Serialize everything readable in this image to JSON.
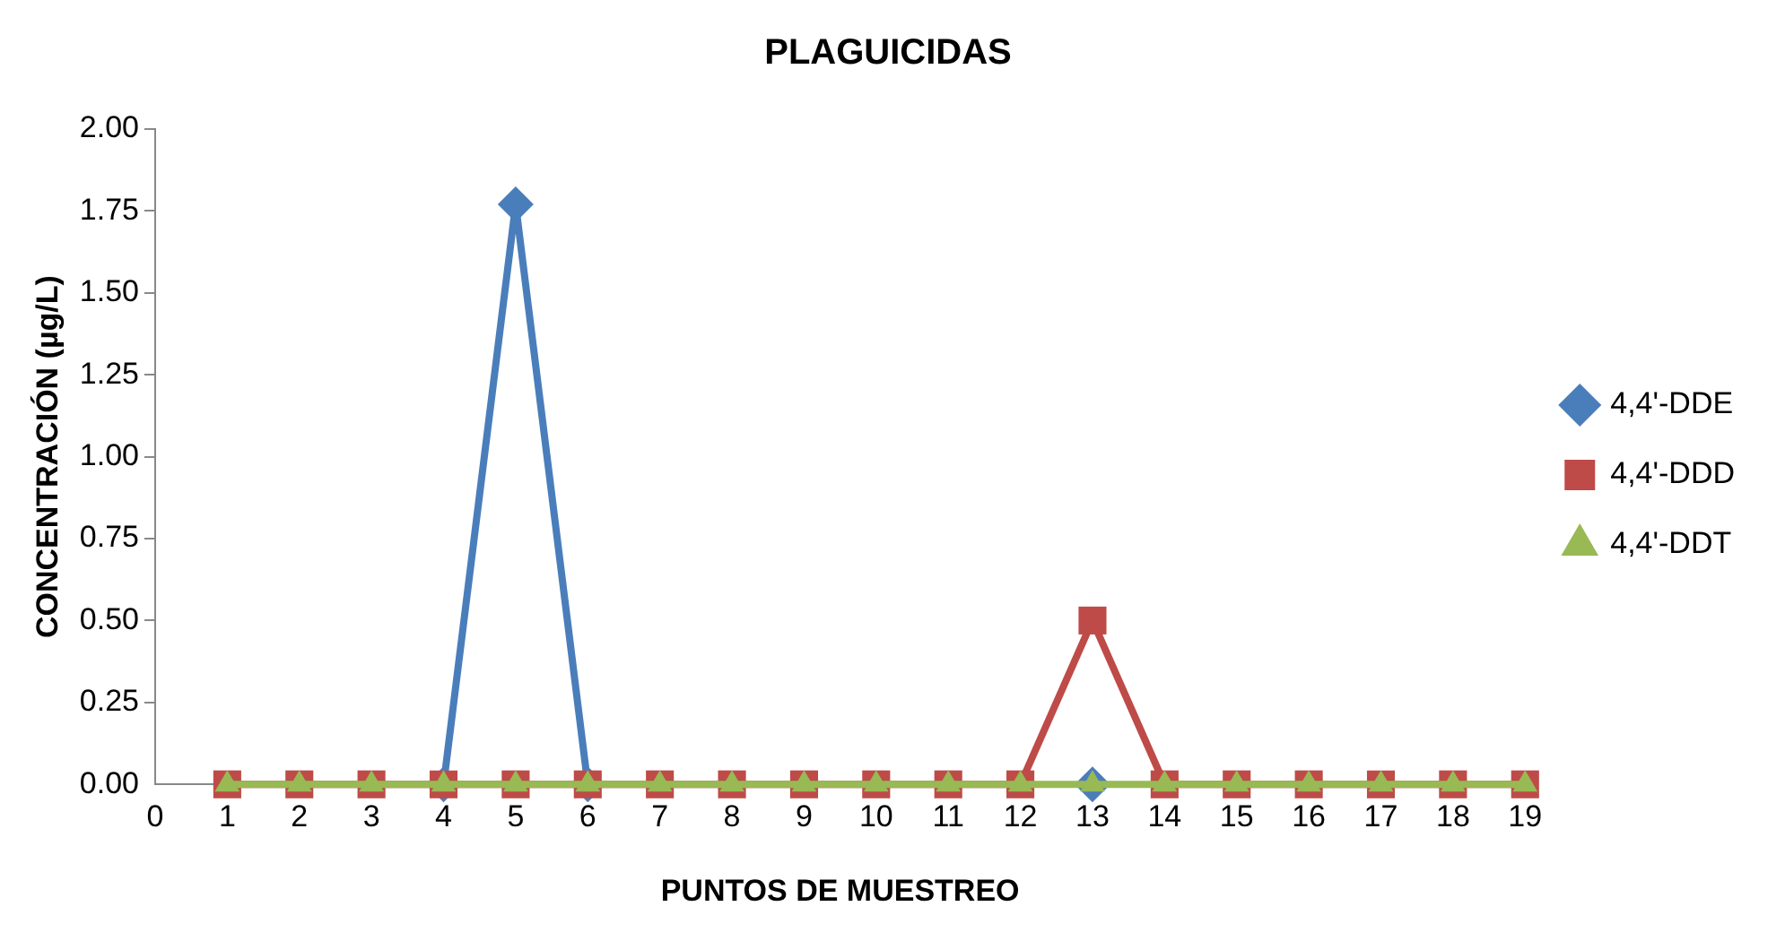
{
  "chart_data": {
    "type": "line",
    "title": "PLAGUICIDAS",
    "xlabel": "PUNTOS DE MUESTREO",
    "ylabel": "CONCENTRACIÓN (µg/L)",
    "x": [
      1,
      2,
      3,
      4,
      5,
      6,
      7,
      8,
      9,
      10,
      11,
      12,
      13,
      14,
      15,
      16,
      17,
      18,
      19
    ],
    "series": [
      {
        "name": "4,4'-DDE",
        "color": "#4a7ebb",
        "marker": "diamond",
        "values": [
          null,
          null,
          null,
          0,
          1.77,
          0,
          null,
          null,
          null,
          null,
          null,
          null,
          0,
          null,
          null,
          null,
          null,
          null,
          null
        ]
      },
      {
        "name": "4,4'-DDD",
        "color": "#be4b48",
        "marker": "square",
        "values": [
          0,
          0,
          0,
          0,
          0,
          0,
          0,
          0,
          0,
          0,
          0,
          0,
          0.5,
          0,
          0,
          0,
          0,
          0,
          0
        ]
      },
      {
        "name": "4,4'-DDT",
        "color": "#98b954",
        "marker": "triangle",
        "values": [
          0,
          0,
          0,
          0,
          0,
          0,
          0,
          0,
          0,
          0,
          0,
          0,
          0,
          0,
          0,
          0,
          0,
          0,
          0
        ]
      }
    ],
    "xlim": [
      0,
      19
    ],
    "xticks": [
      0,
      1,
      2,
      3,
      4,
      5,
      6,
      7,
      8,
      9,
      10,
      11,
      12,
      13,
      14,
      15,
      16,
      17,
      18,
      19
    ],
    "ylim": [
      0,
      2
    ],
    "yticks": [
      {
        "value": 0,
        "label": "0.00"
      },
      {
        "value": 0.25,
        "label": "0.25"
      },
      {
        "value": 0.5,
        "label": "0.50"
      },
      {
        "value": 0.75,
        "label": "0.75"
      },
      {
        "value": 1,
        "label": "1.00"
      },
      {
        "value": 1.25,
        "label": "1.25"
      },
      {
        "value": 1.5,
        "label": "1.50"
      },
      {
        "value": 1.75,
        "label": "1.75"
      },
      {
        "value": 2,
        "label": "2.00"
      }
    ],
    "grid": false,
    "legend": "right",
    "line_style": "solid"
  }
}
